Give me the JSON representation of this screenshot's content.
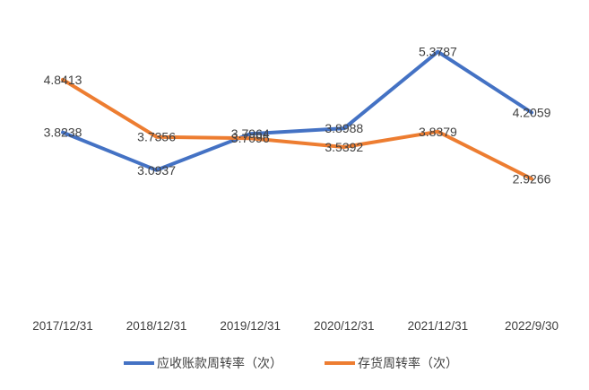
{
  "chart_data": {
    "type": "line",
    "categories": [
      "2017/12/31",
      "2018/12/31",
      "2019/12/31",
      "2020/12/31",
      "2021/12/31",
      "2022/9/30"
    ],
    "series": [
      {
        "name": "应收账款周转率（次）",
        "color": "#4472C4",
        "values": [
          3.8238,
          3.0937,
          3.7964,
          3.8988,
          5.3787,
          4.2059
        ],
        "labels": [
          "3.8238",
          "3.0937",
          "3.7964",
          "3.8988",
          "5.3787",
          "4.2059"
        ]
      },
      {
        "name": "存货周转率（次）",
        "color": "#ED7D31",
        "values": [
          4.8413,
          3.7356,
          3.7096,
          3.5392,
          3.8379,
          2.9266
        ],
        "labels": [
          "4.8413",
          "3.7356",
          "3.7096",
          "3.5392",
          "3.8379",
          "2.9266"
        ]
      }
    ],
    "title": "",
    "xlabel": "",
    "ylabel": "",
    "grid": false,
    "legend": "bottom"
  }
}
